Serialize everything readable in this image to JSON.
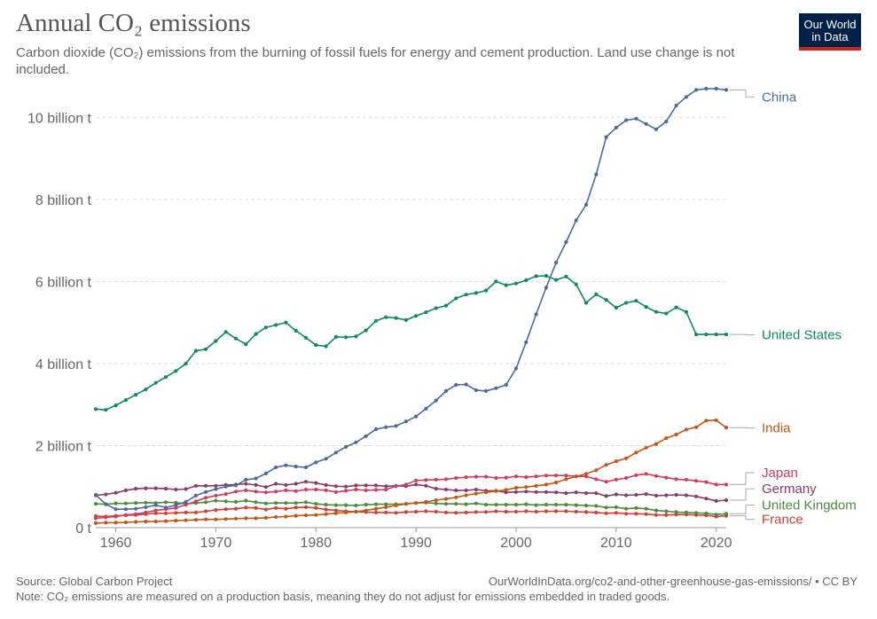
{
  "header": {
    "title": "Annual CO₂ emissions",
    "subtitle": "Carbon dioxide (CO₂) emissions from the burning of fossil fuels for energy and cement production. Land use change is not included."
  },
  "logo": {
    "line1": "Our World",
    "line2": "in Data",
    "bg_color": "#002147",
    "accent_color": "#ce261e"
  },
  "footer": {
    "source": "Source: Global Carbon Project",
    "url": "OurWorldInData.org/co2-and-other-greenhouse-gas-emissions/ • CC BY",
    "note": "Note: CO₂ emissions are measured on a production basis, meaning they do not adjust for emissions embedded in traded goods."
  },
  "chart_data": {
    "type": "line",
    "title": "Annual CO₂ emissions",
    "xlabel": "",
    "ylabel": "",
    "xlim": [
      1958,
      2021
    ],
    "ylim": [
      0,
      10.7
    ],
    "grid": true,
    "legend": "right-end labels",
    "x_ticks": [
      1960,
      1970,
      1980,
      1990,
      2000,
      2010,
      2020
    ],
    "x_tick_labels": [
      "1960",
      "1970",
      "1980",
      "1990",
      "2000",
      "2010",
      "2020"
    ],
    "y_ticks": [
      0,
      2,
      4,
      6,
      8,
      10
    ],
    "y_tick_labels": [
      "0 t",
      "2 billion t",
      "4 billion t",
      "6 billion t",
      "8 billion t",
      "10 billion t"
    ],
    "x": [
      1958,
      1959,
      1960,
      1961,
      1962,
      1963,
      1964,
      1965,
      1966,
      1967,
      1968,
      1969,
      1970,
      1971,
      1972,
      1973,
      1974,
      1975,
      1976,
      1977,
      1978,
      1979,
      1980,
      1981,
      1982,
      1983,
      1984,
      1985,
      1986,
      1987,
      1988,
      1989,
      1990,
      1991,
      1992,
      1993,
      1994,
      1995,
      1996,
      1997,
      1998,
      1999,
      2000,
      2001,
      2002,
      2003,
      2004,
      2005,
      2006,
      2007,
      2008,
      2009,
      2010,
      2011,
      2012,
      2013,
      2014,
      2015,
      2016,
      2017,
      2018,
      2019,
      2020,
      2021
    ],
    "series": [
      {
        "name": "China",
        "color": "#4c6a9c",
        "label_y": 10.5,
        "values": [
          0.8,
          0.57,
          0.45,
          0.45,
          0.46,
          0.5,
          0.55,
          0.49,
          0.55,
          0.63,
          0.78,
          0.87,
          0.94,
          1.0,
          1.03,
          1.17,
          1.2,
          1.32,
          1.47,
          1.52,
          1.49,
          1.47,
          1.59,
          1.68,
          1.83,
          1.97,
          2.08,
          2.23,
          2.4,
          2.45,
          2.48,
          2.59,
          2.71,
          2.9,
          3.1,
          3.33,
          3.48,
          3.49,
          3.35,
          3.33,
          3.4,
          3.48,
          3.88,
          4.52,
          5.2,
          5.85,
          6.46,
          6.96,
          7.49,
          7.87,
          8.61,
          9.52,
          9.75,
          9.93,
          9.97,
          9.84,
          9.71,
          9.9,
          10.29,
          10.5,
          10.67,
          10.7,
          10.7,
          10.67
        ]
      },
      {
        "name": "United States",
        "color": "#0e8b5d",
        "label_y": 4.7,
        "values": [
          2.89,
          2.87,
          2.98,
          3.11,
          3.24,
          3.37,
          3.53,
          3.67,
          3.82,
          4.0,
          4.31,
          4.35,
          4.55,
          4.77,
          4.61,
          4.47,
          4.72,
          4.88,
          4.94,
          5.0,
          4.8,
          4.63,
          4.45,
          4.42,
          4.65,
          4.64,
          4.66,
          4.81,
          5.04,
          5.13,
          5.11,
          5.06,
          5.16,
          5.25,
          5.35,
          5.41,
          5.59,
          5.68,
          5.72,
          5.78,
          6.0,
          5.91,
          5.95,
          6.03,
          6.13,
          6.14,
          6.04,
          6.12,
          5.93,
          5.48,
          5.69,
          5.55,
          5.36,
          5.48,
          5.53,
          5.38,
          5.26,
          5.22,
          5.37,
          5.26,
          4.71,
          4.71,
          4.71,
          4.71
        ]
      },
      {
        "name": "India",
        "color": "#c05917",
        "label_y": 2.43,
        "values": [
          0.11,
          0.12,
          0.12,
          0.13,
          0.14,
          0.15,
          0.15,
          0.16,
          0.17,
          0.18,
          0.19,
          0.2,
          0.2,
          0.21,
          0.22,
          0.23,
          0.23,
          0.24,
          0.26,
          0.27,
          0.29,
          0.3,
          0.31,
          0.33,
          0.35,
          0.37,
          0.39,
          0.42,
          0.46,
          0.5,
          0.54,
          0.58,
          0.6,
          0.63,
          0.67,
          0.7,
          0.74,
          0.79,
          0.83,
          0.86,
          0.89,
          0.92,
          0.97,
          0.99,
          1.02,
          1.05,
          1.1,
          1.18,
          1.25,
          1.31,
          1.4,
          1.53,
          1.62,
          1.69,
          1.83,
          1.95,
          2.04,
          2.18,
          2.27,
          2.39,
          2.45,
          2.61,
          2.62,
          2.44
        ]
      },
      {
        "name": "Japan",
        "color": "#cf3d5f",
        "label_y": 1.34,
        "values": [
          0.23,
          0.25,
          0.27,
          0.31,
          0.33,
          0.37,
          0.42,
          0.45,
          0.48,
          0.56,
          0.64,
          0.73,
          0.78,
          0.82,
          0.88,
          0.91,
          0.88,
          0.86,
          0.88,
          0.91,
          0.89,
          0.93,
          0.93,
          0.91,
          0.87,
          0.9,
          0.93,
          0.91,
          0.92,
          0.93,
          1.01,
          1.05,
          1.15,
          1.16,
          1.17,
          1.18,
          1.21,
          1.23,
          1.24,
          1.24,
          1.21,
          1.22,
          1.25,
          1.23,
          1.25,
          1.27,
          1.27,
          1.27,
          1.25,
          1.25,
          1.18,
          1.12,
          1.17,
          1.21,
          1.28,
          1.31,
          1.26,
          1.22,
          1.18,
          1.17,
          1.14,
          1.11,
          1.05,
          1.05
        ]
      },
      {
        "name": "Germany",
        "color": "#883d64",
        "label_y": 0.95,
        "values": [
          0.79,
          0.81,
          0.85,
          0.91,
          0.95,
          0.96,
          0.96,
          0.95,
          0.93,
          0.94,
          1.02,
          1.02,
          1.02,
          1.04,
          1.05,
          1.07,
          1.04,
          0.99,
          1.07,
          1.04,
          1.07,
          1.12,
          1.09,
          1.04,
          1.01,
          1.0,
          1.03,
          1.03,
          1.03,
          1.01,
          1.02,
          1.01,
          1.05,
          1.02,
          0.95,
          0.93,
          0.91,
          0.91,
          0.93,
          0.9,
          0.9,
          0.86,
          0.87,
          0.88,
          0.87,
          0.87,
          0.86,
          0.84,
          0.86,
          0.84,
          0.84,
          0.77,
          0.81,
          0.79,
          0.8,
          0.82,
          0.78,
          0.79,
          0.8,
          0.79,
          0.76,
          0.71,
          0.65,
          0.67
        ]
      },
      {
        "name": "United Kingdom",
        "color": "#4e8b3d",
        "label_y": 0.55,
        "values": [
          0.58,
          0.57,
          0.59,
          0.59,
          0.6,
          0.61,
          0.6,
          0.62,
          0.61,
          0.58,
          0.6,
          0.62,
          0.66,
          0.64,
          0.63,
          0.66,
          0.62,
          0.59,
          0.6,
          0.6,
          0.6,
          0.62,
          0.58,
          0.56,
          0.55,
          0.55,
          0.54,
          0.56,
          0.57,
          0.57,
          0.57,
          0.58,
          0.6,
          0.61,
          0.59,
          0.58,
          0.58,
          0.57,
          0.59,
          0.56,
          0.56,
          0.56,
          0.56,
          0.57,
          0.55,
          0.56,
          0.56,
          0.56,
          0.55,
          0.54,
          0.53,
          0.49,
          0.5,
          0.46,
          0.48,
          0.46,
          0.42,
          0.4,
          0.38,
          0.37,
          0.36,
          0.35,
          0.32,
          0.34
        ]
      },
      {
        "name": "France",
        "color": "#d14030",
        "label_y": 0.2,
        "values": [
          0.28,
          0.27,
          0.29,
          0.3,
          0.31,
          0.33,
          0.35,
          0.35,
          0.36,
          0.37,
          0.37,
          0.4,
          0.43,
          0.45,
          0.46,
          0.49,
          0.48,
          0.44,
          0.48,
          0.46,
          0.49,
          0.5,
          0.48,
          0.44,
          0.42,
          0.4,
          0.39,
          0.38,
          0.37,
          0.37,
          0.36,
          0.38,
          0.39,
          0.4,
          0.39,
          0.37,
          0.36,
          0.37,
          0.38,
          0.38,
          0.4,
          0.39,
          0.39,
          0.4,
          0.39,
          0.4,
          0.4,
          0.4,
          0.39,
          0.38,
          0.37,
          0.35,
          0.36,
          0.34,
          0.34,
          0.33,
          0.31,
          0.31,
          0.32,
          0.32,
          0.31,
          0.3,
          0.27,
          0.29
        ]
      }
    ]
  }
}
